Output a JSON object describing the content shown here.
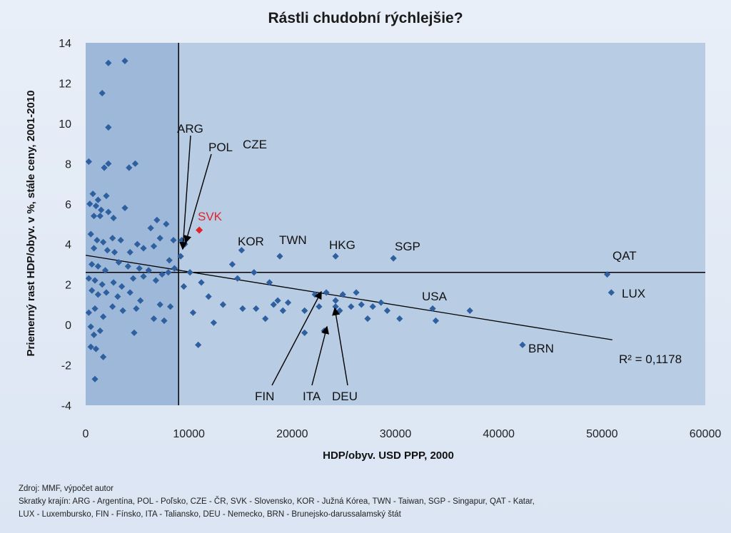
{
  "chart_data": {
    "type": "scatter",
    "title": "Rástli chudobní rýchlejšie?",
    "xlabel": "HDP/obyv. USD PPP, 2000",
    "ylabel": "Priemerný rast HDP/obyv. v %, stále ceny, 2001-2010",
    "xlim": [
      0,
      60000
    ],
    "ylim": [
      -4,
      14
    ],
    "x_ticks": [
      "0",
      "10000",
      "20000",
      "30000",
      "40000",
      "50000",
      "60000"
    ],
    "y_ticks": [
      "-4",
      "-2",
      "0",
      "2",
      "4",
      "6",
      "8",
      "10",
      "12",
      "14"
    ],
    "colors": {
      "point": "#2e5f9e",
      "highlight": "#e0242a",
      "plot_bg": "#b8cce4",
      "shaded_bg": "#9db8d9"
    },
    "points": [
      [
        300,
        8.1
      ],
      [
        2200,
        13.0
      ],
      [
        3800,
        13.1
      ],
      [
        1600,
        11.5
      ],
      [
        2200,
        9.8
      ],
      [
        1800,
        7.8
      ],
      [
        2200,
        8.0
      ],
      [
        4200,
        7.8
      ],
      [
        4800,
        8.0
      ],
      [
        700,
        6.5
      ],
      [
        1200,
        6.2
      ],
      [
        2000,
        6.4
      ],
      [
        400,
        6.0
      ],
      [
        1000,
        5.9
      ],
      [
        1500,
        5.7
      ],
      [
        2200,
        5.6
      ],
      [
        3800,
        5.8
      ],
      [
        6900,
        5.2
      ],
      [
        800,
        5.4
      ],
      [
        1400,
        5.4
      ],
      [
        2700,
        5.3
      ],
      [
        6300,
        4.8
      ],
      [
        7800,
        5.0
      ],
      [
        500,
        4.5
      ],
      [
        1100,
        4.2
      ],
      [
        1700,
        4.1
      ],
      [
        2600,
        4.3
      ],
      [
        3400,
        4.2
      ],
      [
        5000,
        4.0
      ],
      [
        7200,
        4.3
      ],
      [
        8500,
        4.2
      ],
      [
        800,
        3.8
      ],
      [
        2100,
        3.7
      ],
      [
        2800,
        3.6
      ],
      [
        4300,
        3.6
      ],
      [
        5600,
        3.8
      ],
      [
        6600,
        3.9
      ],
      [
        8100,
        3.2
      ],
      [
        600,
        3.0
      ],
      [
        1200,
        2.9
      ],
      [
        1900,
        2.7
      ],
      [
        3200,
        3.1
      ],
      [
        4100,
        2.9
      ],
      [
        5200,
        2.8
      ],
      [
        6100,
        2.7
      ],
      [
        7400,
        2.5
      ],
      [
        8600,
        2.8
      ],
      [
        300,
        2.3
      ],
      [
        900,
        2.2
      ],
      [
        1600,
        2.0
      ],
      [
        2700,
        2.1
      ],
      [
        3500,
        1.9
      ],
      [
        4600,
        2.3
      ],
      [
        5600,
        2.4
      ],
      [
        6800,
        2.2
      ],
      [
        8000,
        2.6
      ],
      [
        600,
        1.7
      ],
      [
        1200,
        1.5
      ],
      [
        2000,
        1.6
      ],
      [
        3100,
        1.4
      ],
      [
        4300,
        1.6
      ],
      [
        5300,
        1.2
      ],
      [
        7200,
        1.0
      ],
      [
        8200,
        0.9
      ],
      [
        300,
        0.6
      ],
      [
        900,
        0.8
      ],
      [
        1700,
        0.4
      ],
      [
        2600,
        0.9
      ],
      [
        3600,
        0.7
      ],
      [
        4900,
        0.8
      ],
      [
        6600,
        0.3
      ],
      [
        7600,
        0.2
      ],
      [
        500,
        -0.1
      ],
      [
        800,
        -0.5
      ],
      [
        1400,
        -0.3
      ],
      [
        4700,
        -0.4
      ],
      [
        500,
        -1.1
      ],
      [
        1000,
        -1.2
      ],
      [
        1700,
        -1.6
      ],
      [
        900,
        -2.7
      ],
      [
        9200,
        3.4
      ],
      [
        9600,
        4.0
      ],
      [
        10100,
        2.6
      ],
      [
        9500,
        1.9
      ],
      [
        10400,
        0.6
      ],
      [
        11200,
        2.1
      ],
      [
        11900,
        1.4
      ],
      [
        10900,
        -1.0
      ],
      [
        12400,
        0.1
      ],
      [
        13300,
        1.0
      ],
      [
        14200,
        3.0
      ],
      [
        14700,
        2.3
      ],
      [
        15200,
        0.8
      ],
      [
        16300,
        2.6
      ],
      [
        16500,
        0.8
      ],
      [
        17400,
        0.3
      ],
      [
        17800,
        2.1
      ],
      [
        18200,
        1.0
      ],
      [
        18600,
        1.2
      ],
      [
        19100,
        0.7
      ],
      [
        19600,
        1.1
      ],
      [
        21200,
        0.7
      ],
      [
        21200,
        -0.4
      ],
      [
        22600,
        0.9
      ],
      [
        23300,
        1.6
      ],
      [
        24200,
        1.2
      ],
      [
        24900,
        1.5
      ],
      [
        25700,
        0.9
      ],
      [
        26200,
        1.6
      ],
      [
        26700,
        1.0
      ],
      [
        27300,
        0.3
      ],
      [
        27800,
        0.9
      ],
      [
        28600,
        1.1
      ],
      [
        29200,
        0.7
      ],
      [
        30400,
        0.3
      ],
      [
        33600,
        0.8
      ],
      [
        33900,
        0.2
      ],
      [
        37200,
        0.7
      ],
      [
        15100,
        3.7
      ],
      [
        18800,
        3.4
      ],
      [
        24200,
        3.4
      ],
      [
        29800,
        3.3
      ],
      [
        50500,
        2.5
      ],
      [
        50900,
        1.6
      ],
      [
        42300,
        -1.0
      ],
      [
        22200,
        1.5
      ],
      [
        23100,
        -0.3
      ],
      [
        24600,
        0.7
      ],
      [
        24200,
        0.9
      ],
      [
        9300,
        4.2
      ]
    ],
    "highlight_point": {
      "label": "SVK",
      "x": 11000,
      "y": 4.7
    },
    "reference_lines": {
      "x": 9000,
      "y": 2.6
    },
    "trendline": {
      "x": [
        0,
        51000
      ],
      "y": [
        3.45,
        -0.75
      ],
      "label": "R² = 0,1178"
    },
    "annotations": [
      {
        "label": "ARG"
      },
      {
        "label": "POL"
      },
      {
        "label": "CZE"
      },
      {
        "label": "SVK"
      },
      {
        "label": "KOR"
      },
      {
        "label": "TWN"
      },
      {
        "label": "HKG"
      },
      {
        "label": "SGP"
      },
      {
        "label": "QAT"
      },
      {
        "label": "LUX"
      },
      {
        "label": "USA"
      },
      {
        "label": "BRN"
      },
      {
        "label": "FIN"
      },
      {
        "label": "ITA"
      },
      {
        "label": "DEU"
      }
    ]
  },
  "footer": {
    "source": "Zdroj: MMF, výpočet autor",
    "abbr_line1": "Skratky krajín: ARG - Argentína, POL - Poľsko, CZE - ČR, SVK - Slovensko, KOR - Južná Kórea, TWN - Taiwan, SGP - Singapur, QAT - Katar,",
    "abbr_line2": "LUX - Luxembursko, FIN - Fínsko, ITA - Taliansko, DEU - Nemecko, BRN - Brunejsko-darussalamský štát"
  }
}
